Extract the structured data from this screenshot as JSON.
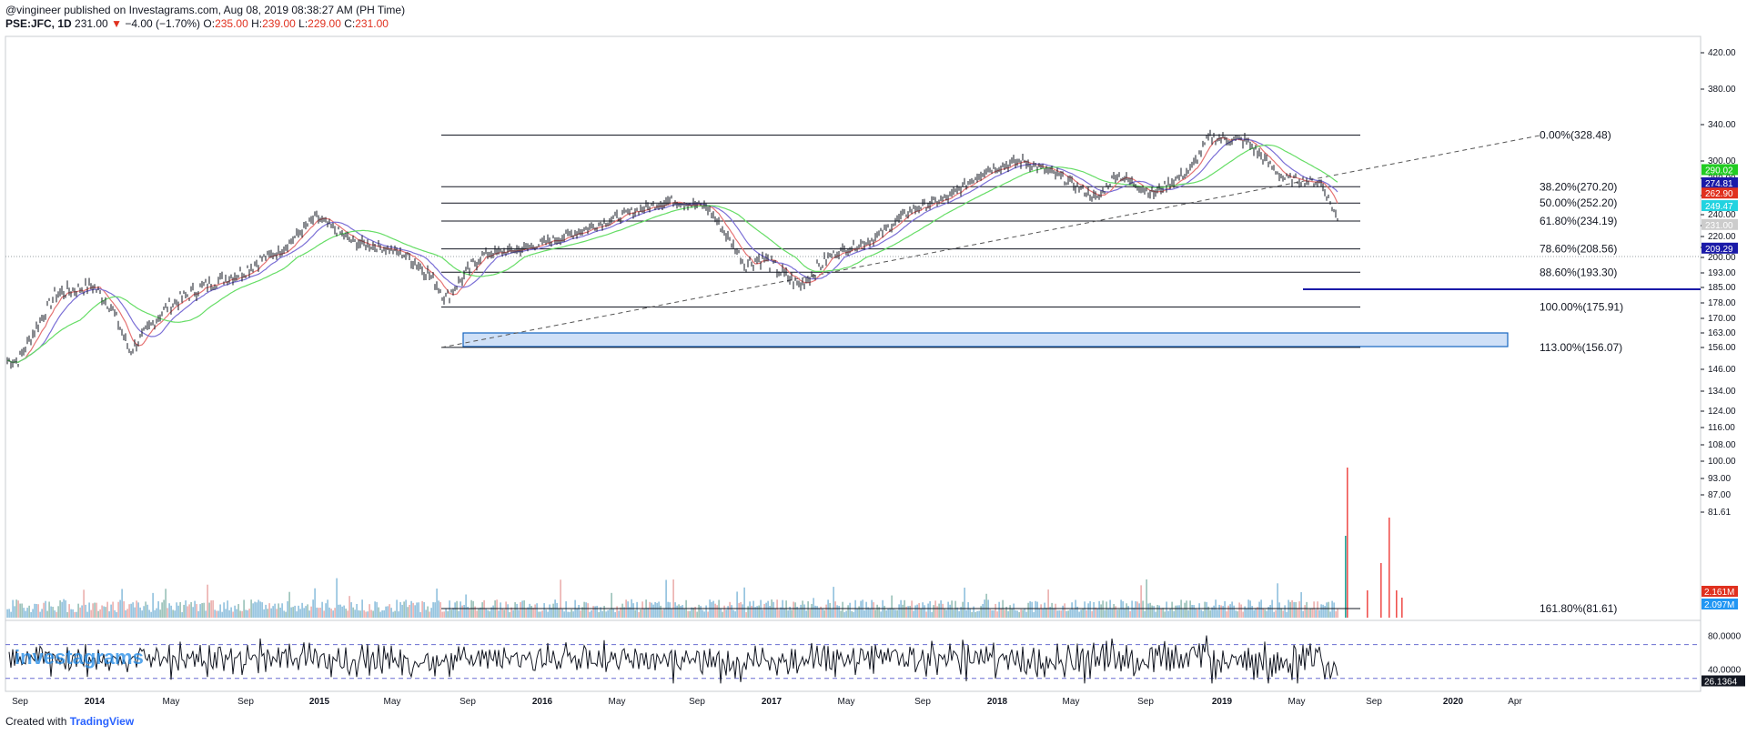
{
  "header": {
    "published": "@vingineer published on Investagrams.com, Aug 08, 2019 08:38:27 AM (PH Time)",
    "symbol": "PSE:JFC, 1D",
    "last": "231.00",
    "arrow": "▼",
    "change": "−4.00 (−1.70%)",
    "o_label": "O:",
    "o_value": "235.00",
    "h_label": "H:",
    "h_value": "239.00",
    "l_label": "L:",
    "l_value": "229.00",
    "c_label": "C:",
    "c_value": "231.00"
  },
  "watermark": "investagrams",
  "footer": {
    "created_with": "Created with",
    "brand": "TradingView"
  },
  "colors": {
    "up": "#26a69a",
    "down": "#ef5350",
    "ma_fast": "#e57373",
    "ma_mid": "#7b6fd6",
    "ma_slow": "#66dd66",
    "line_blue": "#1a1aa8",
    "zone_fill": "#cfe0f7",
    "zone_border": "#1565c0"
  },
  "chart_data": {
    "type": "line",
    "title": "PSE:JFC, 1D",
    "x_ticks": [
      "Sep",
      "2014",
      "May",
      "Sep",
      "2015",
      "May",
      "Sep",
      "2016",
      "May",
      "Sep",
      "2017",
      "May",
      "Sep",
      "2018",
      "May",
      "Sep",
      "2019",
      "May",
      "Sep",
      "2020",
      "Apr"
    ],
    "y_ticks": [
      "420.00",
      "380.00",
      "340.00",
      "300.00",
      "280.00",
      "260.00",
      "240.00",
      "230.00",
      "220.00",
      "210.00",
      "200.00",
      "193.00",
      "185.00",
      "178.00",
      "170.00",
      "163.00",
      "156.00",
      "146.00",
      "134.00",
      "124.00",
      "116.00",
      "108.00",
      "100.00",
      "93.00",
      "87.00",
      "81.61"
    ],
    "price_path": [
      [
        "2013-09",
        150
      ],
      [
        "2013-11",
        182
      ],
      [
        "2014-01",
        186
      ],
      [
        "2014-02",
        176
      ],
      [
        "2014-03",
        154
      ],
      [
        "2014-05",
        176
      ],
      [
        "2014-07",
        186
      ],
      [
        "2014-09",
        193
      ],
      [
        "2014-11",
        205
      ],
      [
        "2015-01",
        238
      ],
      [
        "2015-03",
        215
      ],
      [
        "2015-05",
        208
      ],
      [
        "2015-07",
        193
      ],
      [
        "2015-08",
        180
      ],
      [
        "2015-10",
        203
      ],
      [
        "2015-12",
        208
      ],
      [
        "2016-02",
        218
      ],
      [
        "2016-04",
        230
      ],
      [
        "2016-06",
        243
      ],
      [
        "2016-08",
        255
      ],
      [
        "2016-10",
        248
      ],
      [
        "2016-12",
        197
      ],
      [
        "2017-01",
        200
      ],
      [
        "2017-03",
        186
      ],
      [
        "2017-05",
        205
      ],
      [
        "2017-07",
        218
      ],
      [
        "2017-09",
        245
      ],
      [
        "2017-11",
        258
      ],
      [
        "2018-01",
        290
      ],
      [
        "2018-03",
        300
      ],
      [
        "2018-05",
        282
      ],
      [
        "2018-07",
        256
      ],
      [
        "2018-08",
        285
      ],
      [
        "2018-10",
        262
      ],
      [
        "2018-12",
        290
      ],
      [
        "2019-01",
        326
      ],
      [
        "2019-03",
        322
      ],
      [
        "2019-05",
        280
      ],
      [
        "2019-07",
        275
      ],
      [
        "2019-08",
        231
      ]
    ],
    "fib_levels": [
      {
        "label": "0.00%(328.48)",
        "price": 328.48
      },
      {
        "label": "38.20%(270.20)",
        "price": 270.2
      },
      {
        "label": "50.00%(252.20)",
        "price": 252.2
      },
      {
        "label": "61.80%(234.19)",
        "price": 234.19
      },
      {
        "label": "78.60%(208.56)",
        "price": 208.56
      },
      {
        "label": "88.60%(193.30)",
        "price": 193.3
      },
      {
        "label": "100.00%(175.91)",
        "price": 175.91
      },
      {
        "label": "113.00%(156.07)",
        "price": 156.07
      },
      {
        "label": "161.80%(81.61)",
        "price": 81.61
      }
    ],
    "price_badges": [
      {
        "label": "290.02",
        "color": "#22cc22",
        "price": 290.02
      },
      {
        "label": "274.81",
        "color": "#1a1aa8",
        "price": 274.81
      },
      {
        "label": "262.90",
        "color": "#e0311f",
        "price": 262.9
      },
      {
        "label": "249.47",
        "color": "#22d3e0",
        "price": 249.47
      },
      {
        "label": "231.00",
        "color": "#cccccc",
        "price": 231.0
      },
      {
        "label": "209.29",
        "color": "#1a1aa8",
        "price": 209.29
      }
    ],
    "volume_badges": [
      {
        "label": "2.161M",
        "color": "#e0311f"
      },
      {
        "label": "2.097M",
        "color": "#2196f3"
      }
    ],
    "rsi": {
      "ticks": [
        "80.0000",
        "40.0000"
      ],
      "upper": 70,
      "lower": 30,
      "last": "26.1364"
    }
  }
}
